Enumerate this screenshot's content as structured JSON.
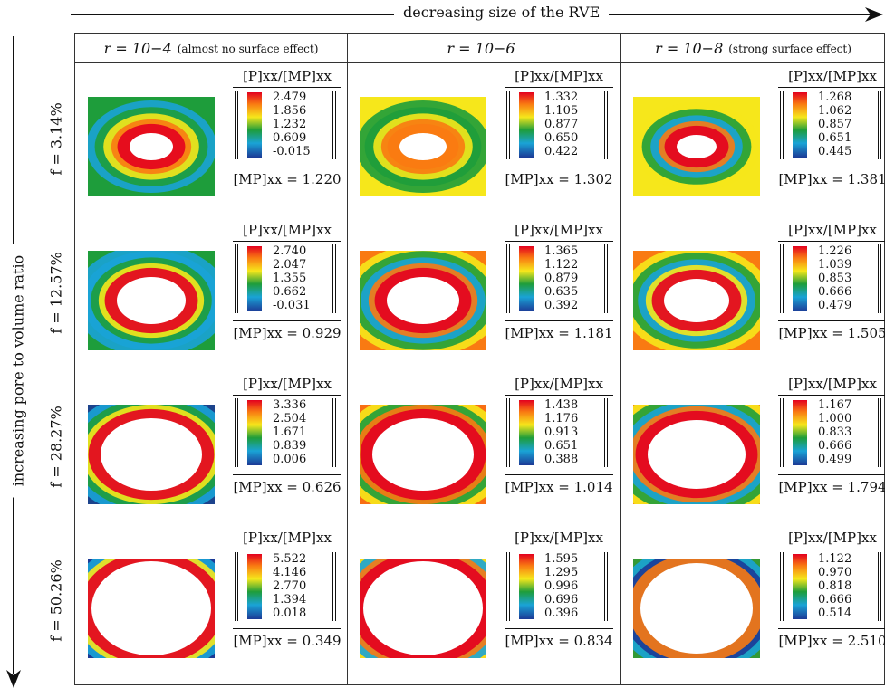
{
  "top_caption": "decreasing size of the RVE",
  "side_caption": "increasing pore to volume ratio",
  "columns": [
    {
      "label": "r = 10−4",
      "note": "(almost no surface effect)"
    },
    {
      "label": "r = 10−6",
      "note": ""
    },
    {
      "label": "r = 10−8",
      "note": "(strong surface effect)"
    }
  ],
  "rows": [
    {
      "label": "f = 3.14%"
    },
    {
      "label": "f = 12.57%"
    },
    {
      "label": "f = 28.27%"
    },
    {
      "label": "f = 50.26%"
    }
  ],
  "legend_title": "[P]xx/[MP]xx",
  "cells": [
    {
      "ticks": [
        "2.479",
        "1.856",
        "1.232",
        "0.609",
        "-0.015"
      ],
      "footer": "[MP]xx = 1.220"
    },
    {
      "ticks": [
        "1.332",
        "1.105",
        "0.877",
        "0.650",
        "0.422"
      ],
      "footer": "[MP]xx = 1.302"
    },
    {
      "ticks": [
        "1.268",
        "1.062",
        "0.857",
        "0.651",
        "0.445"
      ],
      "footer": "[MP]xx = 1.381"
    },
    {
      "ticks": [
        "2.740",
        "2.047",
        "1.355",
        "0.662",
        "-0.031"
      ],
      "footer": "[MP]xx = 0.929"
    },
    {
      "ticks": [
        "1.365",
        "1.122",
        "0.879",
        "0.635",
        "0.392"
      ],
      "footer": "[MP]xx = 1.181"
    },
    {
      "ticks": [
        "1.226",
        "1.039",
        "0.853",
        "0.666",
        "0.479"
      ],
      "footer": "[MP]xx = 1.505"
    },
    {
      "ticks": [
        "3.336",
        "2.504",
        "1.671",
        "0.839",
        "0.006"
      ],
      "footer": "[MP]xx = 0.626"
    },
    {
      "ticks": [
        "1.438",
        "1.176",
        "0.913",
        "0.651",
        "0.388"
      ],
      "footer": "[MP]xx = 1.014"
    },
    {
      "ticks": [
        "1.167",
        "1.000",
        "0.833",
        "0.666",
        "0.499"
      ],
      "footer": "[MP]xx = 1.794"
    },
    {
      "ticks": [
        "5.522",
        "4.146",
        "2.770",
        "1.394",
        "0.018"
      ],
      "footer": "[MP]xx = 0.349"
    },
    {
      "ticks": [
        "1.595",
        "1.295",
        "0.996",
        "0.696",
        "0.396"
      ],
      "footer": "[MP]xx = 0.834"
    },
    {
      "ticks": [
        "1.122",
        "0.970",
        "0.818",
        "0.666",
        "0.514"
      ],
      "footer": "[MP]xx = 2.510"
    }
  ],
  "colors": {
    "red": "#e3001f",
    "orange": "#f97a12",
    "yellow": "#f6e71b",
    "green": "#1e9d3b",
    "cyan": "#1aa3d6",
    "blue": "#1c3a96"
  }
}
